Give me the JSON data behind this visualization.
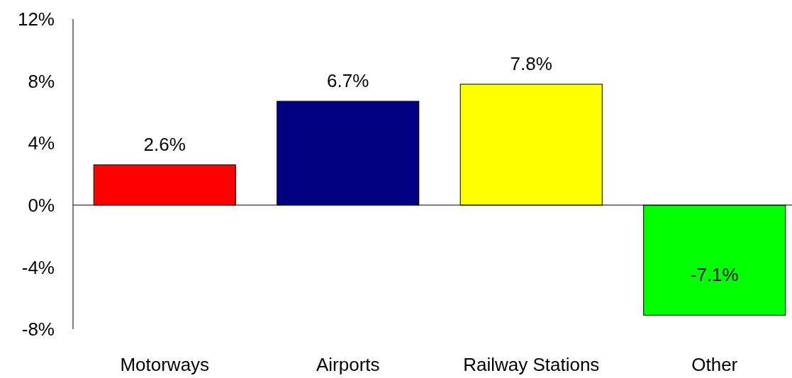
{
  "chart_data": {
    "type": "bar",
    "categories": [
      "Motorways",
      "Airports",
      "Railway Stations",
      "Other"
    ],
    "values": [
      2.6,
      6.7,
      7.8,
      -7.1
    ],
    "colors": [
      "#ff0000",
      "#000080",
      "#ffff00",
      "#00ff00"
    ],
    "value_labels": [
      "2.6%",
      "6.7%",
      "7.8%",
      "-7.1%"
    ],
    "ylim": [
      -8,
      12
    ],
    "yticks": [
      {
        "value": -8,
        "label": "-8%"
      },
      {
        "value": -4,
        "label": "-4%"
      },
      {
        "value": 0,
        "label": "0%"
      },
      {
        "value": 4,
        "label": "4%"
      },
      {
        "value": 8,
        "label": "8%"
      },
      {
        "value": 12,
        "label": "12%"
      }
    ]
  }
}
